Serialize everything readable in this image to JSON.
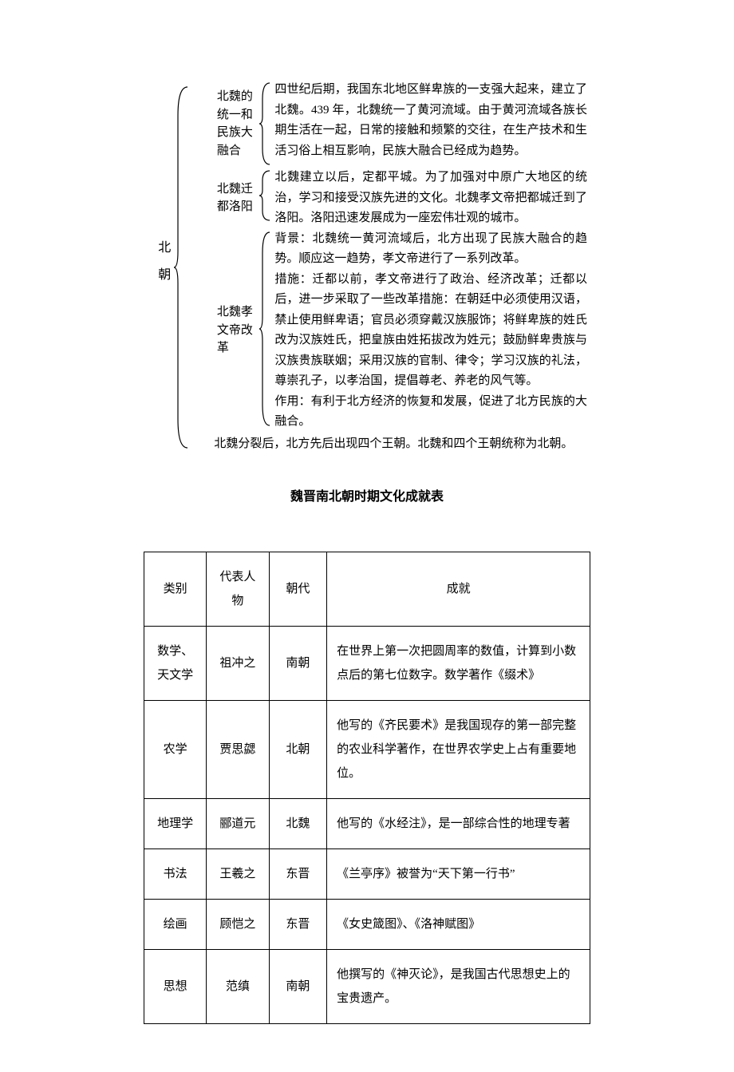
{
  "diagram": {
    "root_label": "北朝",
    "sections": [
      {
        "label": "北魏的统一和民族大融合",
        "text": "四世纪后期，我国东北地区鲜卑族的一支强大起来，建立了北魏。439 年，北魏统一了黄河流域。由于黄河流域各族长期生活在一起，日常的接触和频繁的交往，在生产技术和生活习俗上相互影响，民族大融合已经成为趋势。"
      },
      {
        "label": "北魏迁都洛阳",
        "text": "北魏建立以后，定都平城。为了加强对中原广大地区的统治，学习和接受汉族先进的文化。北魏孝文帝把都城迁到了洛阳。洛阳迅速发展成为一座宏伟壮观的城市。"
      },
      {
        "label": "北魏孝文帝改革",
        "text": "背景：北魏统一黄河流域后，北方出现了民族大融合的趋势。顺应这一趋势，孝文帝进行了一系列改革。\n措施：迁都以前，孝文帝进行了政治、经济改革；迁都以后，进一步采取了一些改革措施：在朝廷中必须使用汉语，禁止使用鲜卑语；官员必须穿戴汉族服饰；将鲜卑族的姓氏改为汉族姓氏，把皇族由姓拓拔改为姓元；鼓励鲜卑贵族与汉族贵族联姻；采用汉族的官制、律令；学习汉族的礼法，尊崇孔子，以孝治国，提倡尊老、养老的风气等。\n作用：有利于北方经济的恢复和发展，促进了北方民族的大融合。"
      }
    ],
    "final": "北魏分裂后，北方先后出现四个王朝。北魏和四个王朝统称为北朝。"
  },
  "table": {
    "title": "魏晋南北朝时期文化成就表",
    "headers": [
      "类别",
      "代表人物",
      "朝代",
      "成就"
    ],
    "rows": [
      [
        "数学、天文学",
        "祖冲之",
        "南朝",
        "在世界上第一次把圆周率的数值，计算到小数点后的第七位数字。数学著作《缀术》"
      ],
      [
        "农学",
        "贾思勰",
        "北朝",
        "他写的《齐民要术》是我国现存的第一部完整的农业科学著作，在世界农学史上占有重要地位。"
      ],
      [
        "地理学",
        "郦道元",
        "北魏",
        "他写的《水经注》，是一部综合性的地理专著"
      ],
      [
        "书法",
        "王羲之",
        "东晋",
        "《兰亭序》被誉为“天下第一行书”"
      ],
      [
        "绘画",
        "顾恺之",
        "东晋",
        "《女史箴图》、《洛神赋图》"
      ],
      [
        "思想",
        "范缜",
        "南朝",
        "他撰写的《神灭论》，是我国古代思想史上的宝贵遗产。"
      ]
    ]
  },
  "brace_style": {
    "stroke": "#000",
    "stroke_width": 1.2
  }
}
